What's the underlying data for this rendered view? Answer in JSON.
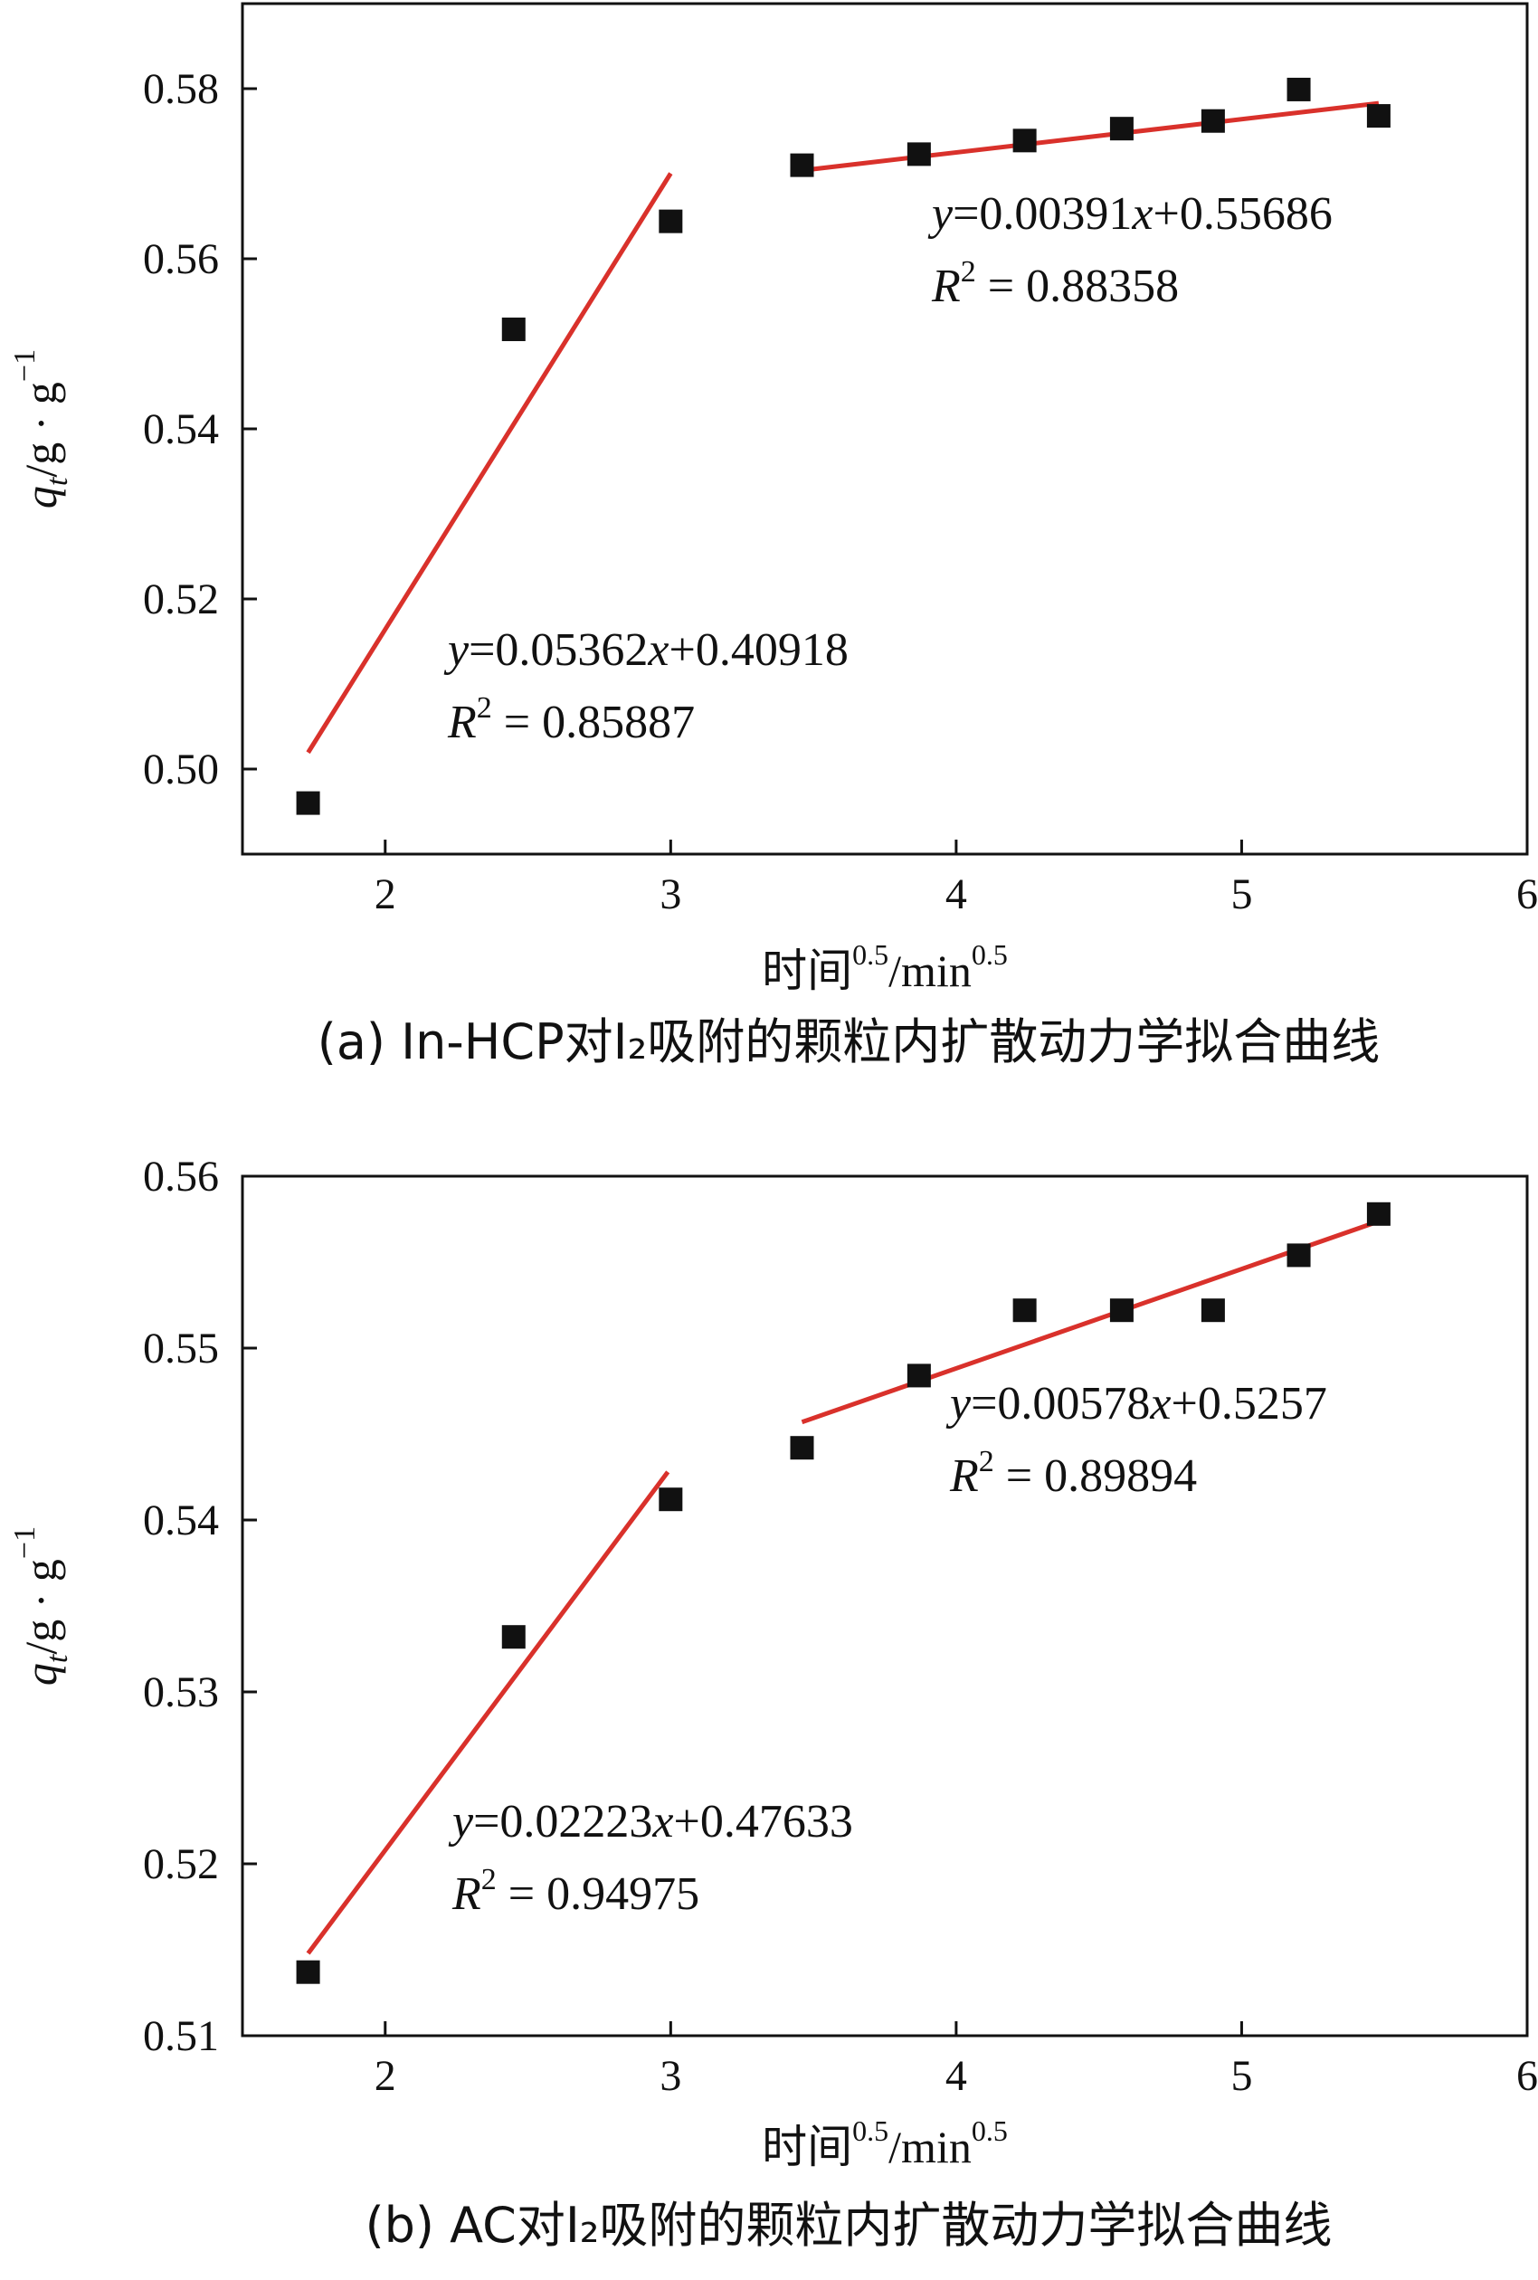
{
  "chart_data": [
    {
      "type": "scatter",
      "caption": "(a) In-HCP对I₂吸附的颗粒内扩散动力学拟合曲线",
      "xlabel": "时间0.5/min0.5",
      "xlabel_parts": {
        "main": "时间",
        "sup1": "0.5",
        "mid": "/min",
        "sup2": "0.5"
      },
      "ylabel_parts": {
        "q": "q",
        "sub": "t",
        "unit": "/g · g",
        "sup": "−1"
      },
      "xlim": [
        1.5,
        6
      ],
      "ylim": [
        0.49,
        0.59
      ],
      "xticks": [
        2,
        3,
        4,
        5,
        6
      ],
      "yticks": [
        0.5,
        0.52,
        0.54,
        0.56,
        0.58
      ],
      "ytick_labels": [
        "0.50",
        "0.52",
        "0.54",
        "0.56",
        "0.58"
      ],
      "marker_color": "#111111",
      "line_color": "#d9312b",
      "points": {
        "x": [
          1.73,
          2.45,
          3.0,
          3.46,
          3.87,
          4.24,
          4.58,
          4.9,
          5.2,
          5.48
        ],
        "y": [
          0.496,
          0.5517,
          0.5644,
          0.571,
          0.5723,
          0.5739,
          0.5753,
          0.5762,
          0.5799,
          0.5768
        ]
      },
      "fits": [
        {
          "slope": 0.05362,
          "intercept": 0.40918,
          "x_range": [
            1.73,
            3.0
          ],
          "equation": {
            "y": "y",
            "rest": "=0.05362",
            "x": "x",
            "tail": "+0.40918"
          },
          "r2": {
            "R": "R",
            "sup": "2",
            "value": " = 0.85887"
          }
        },
        {
          "slope": 0.00391,
          "intercept": 0.55686,
          "x_range": [
            3.46,
            5.48
          ],
          "equation": {
            "y": "y",
            "rest": "=0.00391",
            "x": "x",
            "tail": "+0.55686"
          },
          "r2": {
            "R": "R",
            "sup": "2",
            "value": " = 0.88358"
          }
        }
      ]
    },
    {
      "type": "scatter",
      "caption": "(b) AC对I₂吸附的颗粒内扩散动力学拟合曲线",
      "xlabel": "时间0.5/min0.5",
      "xlabel_parts": {
        "main": "时间",
        "sup1": "0.5",
        "mid": "/min",
        "sup2": "0.5"
      },
      "ylabel_parts": {
        "q": "q",
        "sub": "t",
        "unit": "/g · g",
        "sup": "−1"
      },
      "xlim": [
        1.5,
        6
      ],
      "ylim": [
        0.51,
        0.56
      ],
      "xticks": [
        2,
        3,
        4,
        5,
        6
      ],
      "yticks": [
        0.51,
        0.52,
        0.53,
        0.54,
        0.55,
        0.56
      ],
      "ytick_labels": [
        "0.51",
        "0.52",
        "0.53",
        "0.54",
        "0.55",
        "0.56"
      ],
      "marker_color": "#111111",
      "line_color": "#d9312b",
      "points": {
        "x": [
          1.73,
          2.45,
          3.0,
          3.46,
          3.87,
          4.24,
          4.58,
          4.9,
          5.2,
          5.48
        ],
        "y": [
          0.5137,
          0.5332,
          0.5412,
          0.5442,
          0.5484,
          0.5522,
          0.5522,
          0.5522,
          0.5554,
          0.5578
        ]
      },
      "fits": [
        {
          "slope": 0.02223,
          "intercept": 0.47633,
          "x_range": [
            1.73,
            2.99
          ],
          "equation": {
            "y": "y",
            "rest": "=0.02223",
            "x": "x",
            "tail": "+0.47633"
          },
          "r2": {
            "R": "R",
            "sup": "2",
            "value": " = 0.94975"
          }
        },
        {
          "slope": 0.00578,
          "intercept": 0.5257,
          "x_range": [
            3.46,
            5.48
          ],
          "equation": {
            "y": "y",
            "rest": "=0.00578",
            "x": "x",
            "tail": "+0.5257"
          },
          "r2": {
            "R": "R",
            "sup": "2",
            "value": " = 0.89894"
          }
        }
      ]
    }
  ]
}
